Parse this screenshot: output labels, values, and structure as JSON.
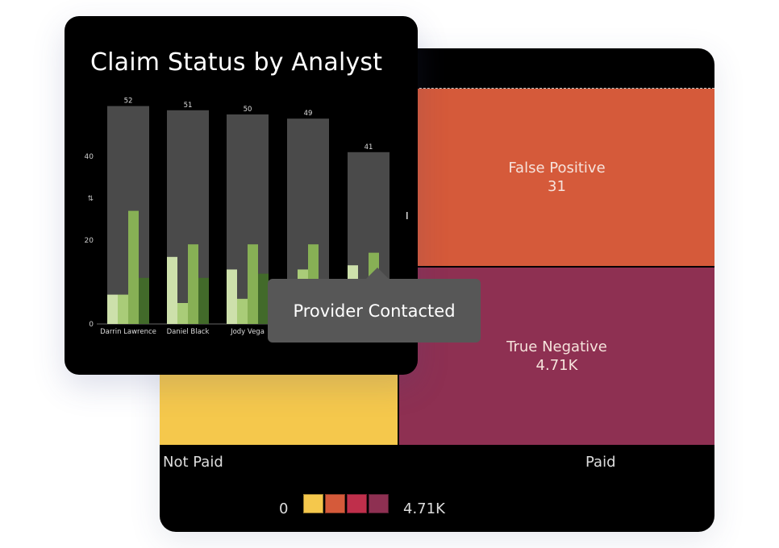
{
  "treemap": {
    "cells": [
      {
        "label": "False Positive",
        "value": "31",
        "color": "#d55a3a"
      },
      {
        "label": "True Negative",
        "value": "4.71K",
        "color": "#8e3052"
      }
    ],
    "not_paid_color": "#f5c84c",
    "x_labels": [
      "Not Paid",
      "Paid"
    ],
    "legend": {
      "min": "0",
      "max": "4.71K",
      "colors": [
        "#f5c84c",
        "#d55a3a",
        "#bf2f4b",
        "#8e3052"
      ]
    }
  },
  "bar_card": {
    "title": "Claim Status by Analyst",
    "sort_icon": "sort-icon",
    "chart_data": {
      "type": "bar",
      "categories": [
        "Darrin Lawrence",
        "Daniel Black",
        "Jody Vega",
        "",
        ""
      ],
      "totals": [
        52,
        51,
        50,
        49,
        41
      ],
      "series": [
        {
          "values": [
            7,
            16,
            13,
            null,
            14
          ],
          "color": "#cde0ab"
        },
        {
          "values": [
            7,
            5,
            6,
            13,
            null
          ],
          "color": "#a9cc78"
        },
        {
          "values": [
            27,
            19,
            19,
            19,
            17
          ],
          "color": "#87b055"
        },
        {
          "values": [
            11,
            11,
            12,
            null,
            null
          ],
          "color": "#426a2a"
        }
      ],
      "y_ticks": [
        "0",
        "20",
        "40"
      ],
      "ylim": [
        0,
        52
      ]
    },
    "tooltip": "Provider Contacted"
  }
}
